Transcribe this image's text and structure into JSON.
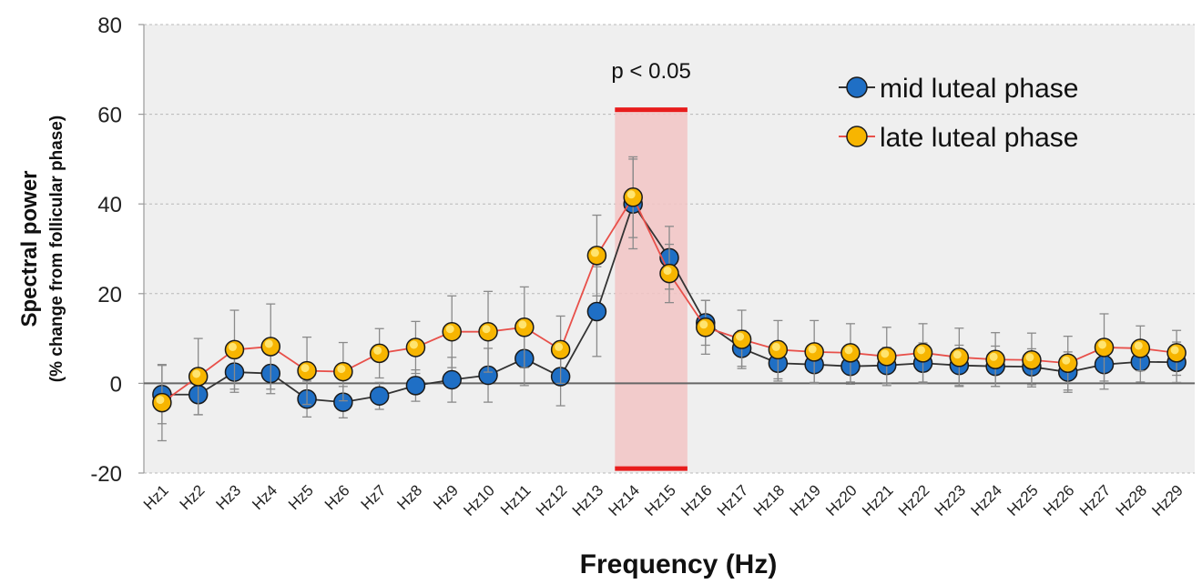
{
  "chart_data": {
    "type": "line",
    "title": "",
    "xlabel": "Frequency (Hz)",
    "ylabel": "Spectral power",
    "ylabel_sub": "(% change from follicular phase)",
    "ylim": [
      -20,
      80
    ],
    "yticks": [
      -20,
      0,
      20,
      40,
      60,
      80
    ],
    "grid": true,
    "legend_position": "top-right",
    "categories": [
      "Hz1",
      "Hz2",
      "Hz3",
      "Hz4",
      "Hz5",
      "Hz6",
      "Hz7",
      "Hz8",
      "Hz9",
      "Hz10",
      "Hz11",
      "Hz12",
      "Hz13",
      "Hz14",
      "Hz15",
      "Hz16",
      "Hz17",
      "Hz18",
      "Hz19",
      "Hz20",
      "Hz21",
      "Hz22",
      "Hz23",
      "Hz24",
      "Hz25",
      "Hz26",
      "Hz27",
      "Hz28",
      "Hz29"
    ],
    "series": [
      {
        "name": "mid luteal phase",
        "color": "#1f6fc5",
        "line_color": "#333333",
        "values": [
          -2.5,
          -2.5,
          2.5,
          2.2,
          -3.5,
          -4.2,
          -2.8,
          -0.5,
          0.8,
          1.8,
          5.5,
          1.5,
          16.0,
          40.0,
          28.0,
          13.5,
          7.8,
          4.5,
          4.2,
          3.8,
          4.0,
          4.5,
          4.0,
          3.8,
          3.7,
          2.5,
          4.2,
          4.8,
          4.7
        ],
        "error": [
          6.5,
          4.5,
          4.5,
          4.5,
          4.0,
          3.5,
          3.0,
          3.5,
          5.0,
          6.0,
          6.0,
          6.5,
          10.0,
          10.0,
          7.0,
          5.0,
          4.0,
          4.0,
          4.0,
          4.0,
          4.0,
          4.5,
          4.5,
          4.5,
          4.0,
          4.5,
          5.5,
          4.5,
          4.5
        ]
      },
      {
        "name": "late luteal phase",
        "color": "#f7b500",
        "line_color": "#e8504a",
        "values": [
          -4.3,
          1.5,
          7.5,
          8.2,
          2.8,
          2.6,
          6.7,
          8.0,
          11.5,
          11.5,
          12.5,
          7.5,
          28.5,
          41.5,
          24.5,
          12.5,
          9.8,
          7.5,
          7.0,
          6.8,
          6.0,
          6.8,
          5.8,
          5.3,
          5.2,
          4.5,
          8.0,
          7.8,
          6.8
        ],
        "error": [
          8.5,
          8.5,
          8.8,
          9.5,
          7.5,
          6.5,
          5.5,
          5.8,
          8.0,
          9.0,
          9.0,
          7.5,
          9.0,
          9.0,
          6.5,
          6.0,
          6.5,
          6.5,
          7.0,
          6.5,
          6.5,
          6.5,
          6.5,
          6.0,
          6.0,
          6.0,
          7.5,
          5.0,
          5.0
        ]
      }
    ],
    "highlight": {
      "from": "Hz14",
      "to": "Hz15",
      "label": "p < 0.05",
      "fill": "#f2c4c4",
      "edge_color": "#e81c1c"
    }
  }
}
